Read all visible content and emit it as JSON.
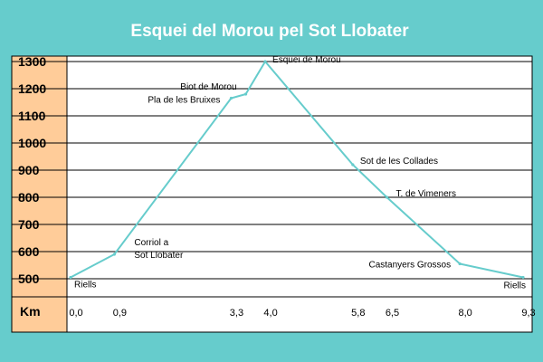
{
  "colors": {
    "background": "#66cccc",
    "plot_area": "#ffffff",
    "y_axis_band": "#ffcc99",
    "line": "#66cccc",
    "grid": "#000000",
    "title_text": "#ffffff"
  },
  "chart_data": {
    "type": "line",
    "title": "Esquei del Morou pel Sot Llobater",
    "xlabel": "",
    "ylabel": "",
    "x_unit_label": "Km",
    "ylim": [
      500,
      1300
    ],
    "y_ticks": [
      500,
      600,
      700,
      800,
      900,
      1000,
      1100,
      1200,
      1300
    ],
    "y_tick_labels": [
      "500",
      "600",
      "700",
      "800",
      "900",
      "1000",
      "1100",
      "1200",
      "1300"
    ],
    "x_ticks": [
      0,
      0.9,
      3.3,
      4.0,
      5.8,
      6.5,
      8.0,
      9.3
    ],
    "x_tick_labels": [
      "0,0",
      "0,9",
      "3,3",
      "4,0",
      "5,8",
      "6,5",
      "8,0",
      "9,3"
    ],
    "grid": true,
    "legend": "none",
    "points": [
      {
        "x": 0.0,
        "y": 505
      },
      {
        "x": 0.9,
        "y": 590
      },
      {
        "x": 3.3,
        "y": 1165
      },
      {
        "x": 3.6,
        "y": 1180
      },
      {
        "x": 4.0,
        "y": 1300
      },
      {
        "x": 5.8,
        "y": 920
      },
      {
        "x": 6.5,
        "y": 800
      },
      {
        "x": 8.0,
        "y": 555
      },
      {
        "x": 9.3,
        "y": 505
      }
    ],
    "annotations": [
      {
        "lines": [
          "Riells"
        ],
        "x": 0.0,
        "y": 505
      },
      {
        "lines": [
          "Corriol a",
          "Sot Llobater"
        ],
        "x": 0.9,
        "y": 590
      },
      {
        "lines": [
          "Pla de les Bruixes"
        ],
        "x": 3.3,
        "y": 1165
      },
      {
        "lines": [
          "Biot de Morou"
        ],
        "x": 3.6,
        "y": 1180
      },
      {
        "lines": [
          "Esquei de Morou"
        ],
        "x": 4.0,
        "y": 1300
      },
      {
        "lines": [
          "Sot de les Collades"
        ],
        "x": 5.8,
        "y": 920
      },
      {
        "lines": [
          "T. de Vimeners"
        ],
        "x": 6.5,
        "y": 800
      },
      {
        "lines": [
          "Castanyers Grossos"
        ],
        "x": 8.0,
        "y": 555
      },
      {
        "lines": [
          "Riells"
        ],
        "x": 9.3,
        "y": 505
      }
    ]
  }
}
